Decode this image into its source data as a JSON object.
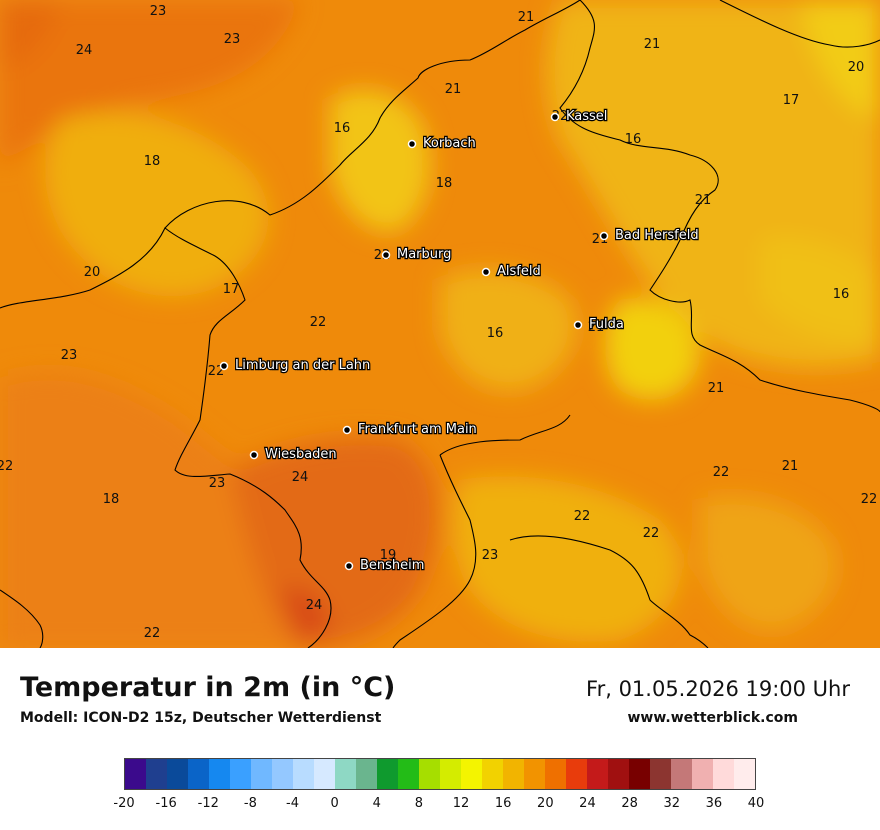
{
  "header": {
    "title": "Temperatur in 2m (in °C)",
    "model": "Modell: ICON-D2 15z, Deutscher Wetterdienst",
    "datetime": "Fr, 01.05.2026 19:00 Uhr",
    "website": "www.wetterblick.com"
  },
  "cities": [
    {
      "name": "Kassel"
    },
    {
      "name": "Korbach"
    },
    {
      "name": "Bad Hersfeld"
    },
    {
      "name": "Marburg"
    },
    {
      "name": "Alsfeld"
    },
    {
      "name": "Fulda"
    },
    {
      "name": "Limburg an der Lahn"
    },
    {
      "name": "Frankfurt am Main"
    },
    {
      "name": "Wiesbaden"
    },
    {
      "name": "Bensheim"
    }
  ],
  "temperature_labels": [
    {
      "value": "23"
    },
    {
      "value": "24"
    },
    {
      "value": "23"
    },
    {
      "value": "21"
    },
    {
      "value": "21"
    },
    {
      "value": "20"
    },
    {
      "value": "21"
    },
    {
      "value": "17"
    },
    {
      "value": "16"
    },
    {
      "value": "16"
    },
    {
      "value": "18"
    },
    {
      "value": "18"
    },
    {
      "value": "21"
    },
    {
      "value": "20"
    },
    {
      "value": "17"
    },
    {
      "value": "22"
    },
    {
      "value": "16"
    },
    {
      "value": "16"
    },
    {
      "value": "23"
    },
    {
      "value": "21"
    },
    {
      "value": "22"
    },
    {
      "value": "21"
    },
    {
      "value": "22"
    },
    {
      "value": "23"
    },
    {
      "value": "24"
    },
    {
      "value": "18"
    },
    {
      "value": "22"
    },
    {
      "value": "22"
    },
    {
      "value": "22"
    },
    {
      "value": "19"
    },
    {
      "value": "23"
    },
    {
      "value": "24"
    },
    {
      "value": "22"
    },
    {
      "value": "22"
    },
    {
      "value": "21"
    },
    {
      "value": "22"
    },
    {
      "value": "22"
    },
    {
      "value": "21"
    }
  ],
  "legend": {
    "ticks": [
      "-20",
      "-16",
      "-12",
      "-8",
      "-4",
      "0",
      "4",
      "8",
      "12",
      "16",
      "20",
      "24",
      "28",
      "32",
      "36",
      "40"
    ],
    "colors": [
      "#3b0a8c",
      "#1f3f8f",
      "#0a4a9a",
      "#0a64c8",
      "#1588f0",
      "#3aa0ff",
      "#70b8ff",
      "#94c8ff",
      "#b8dcff",
      "#d6e9ff",
      "#8ed8c4",
      "#6ab58e",
      "#0f9a2e",
      "#23bc17",
      "#a6de00",
      "#d4ec00",
      "#f4f400",
      "#f2d200",
      "#f2b400",
      "#f29300",
      "#ef7000",
      "#e83c0c",
      "#c41a1a",
      "#a01010",
      "#780000",
      "#8c3530",
      "#c47878",
      "#f0b0b0",
      "#ffdada",
      "#ffecec"
    ]
  }
}
